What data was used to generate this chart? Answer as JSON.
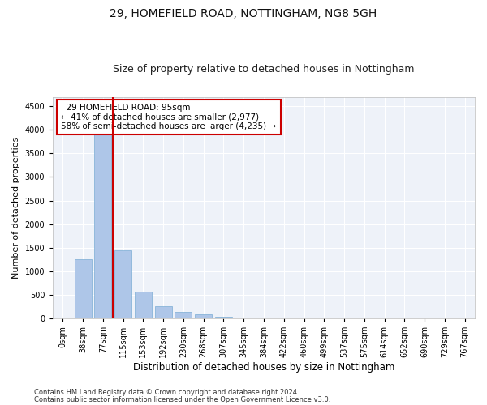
{
  "title1": "29, HOMEFIELD ROAD, NOTTINGHAM, NG8 5GH",
  "title2": "Size of property relative to detached houses in Nottingham",
  "xlabel": "Distribution of detached houses by size in Nottingham",
  "ylabel": "Number of detached properties",
  "footnote1": "Contains HM Land Registry data © Crown copyright and database right 2024.",
  "footnote2": "Contains public sector information licensed under the Open Government Licence v3.0.",
  "bar_labels": [
    "0sqm",
    "38sqm",
    "77sqm",
    "115sqm",
    "153sqm",
    "192sqm",
    "230sqm",
    "268sqm",
    "307sqm",
    "345sqm",
    "384sqm",
    "422sqm",
    "460sqm",
    "499sqm",
    "537sqm",
    "575sqm",
    "614sqm",
    "652sqm",
    "690sqm",
    "729sqm",
    "767sqm"
  ],
  "bar_values": [
    0,
    1250,
    4500,
    1450,
    560,
    250,
    130,
    80,
    35,
    10,
    5,
    3,
    2,
    0,
    0,
    0,
    1,
    0,
    0,
    0,
    0
  ],
  "bar_color": "#aec6e8",
  "bar_edge_color": "#7badd4",
  "red_line_color": "#cc0000",
  "annotation_text": "  29 HOMEFIELD ROAD: 95sqm\n← 41% of detached houses are smaller (2,977)\n58% of semi-detached houses are larger (4,235) →",
  "annotation_box_color": "#ffffff",
  "annotation_box_edge_color": "#cc0000",
  "ylim": [
    0,
    4700
  ],
  "yticks": [
    0,
    500,
    1000,
    1500,
    2000,
    2500,
    3000,
    3500,
    4000,
    4500
  ],
  "background_color": "#eef2f9",
  "grid_color": "#ffffff",
  "title1_fontsize": 10,
  "title2_fontsize": 9,
  "xlabel_fontsize": 8.5,
  "ylabel_fontsize": 8,
  "tick_fontsize": 7,
  "annot_fontsize": 7.5,
  "footnote_fontsize": 6
}
